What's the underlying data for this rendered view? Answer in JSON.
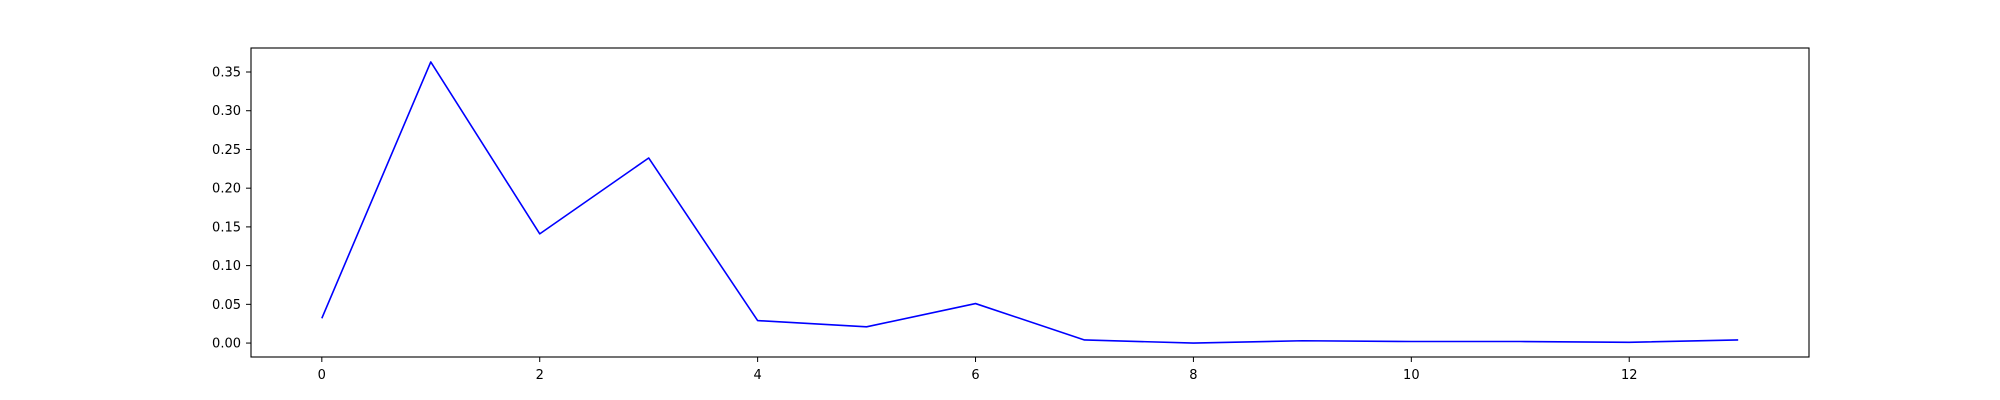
{
  "chart_data": {
    "type": "line",
    "title": "",
    "xlabel": "",
    "ylabel": "",
    "x": [
      0,
      1,
      2,
      3,
      4,
      5,
      6,
      7,
      8,
      9,
      10,
      11,
      12,
      13
    ],
    "series": [
      {
        "color": "#0000ff",
        "values": [
          0.032,
          0.363,
          0.141,
          0.239,
          0.029,
          0.021,
          0.051,
          0.004,
          0.0,
          0.003,
          0.002,
          0.002,
          0.001,
          0.004
        ]
      }
    ],
    "xlim": [
      -0.65,
      13.65
    ],
    "ylim": [
      -0.018,
      0.381
    ],
    "xticks": [
      0,
      2,
      4,
      6,
      8,
      10,
      12
    ],
    "yticks": [
      0.0,
      0.05,
      0.1,
      0.15,
      0.2,
      0.25,
      0.3,
      0.35
    ],
    "xtick_labels": [
      "0",
      "2",
      "4",
      "6",
      "8",
      "10",
      "12"
    ],
    "ytick_labels": [
      "0.00",
      "0.05",
      "0.10",
      "0.15",
      "0.20",
      "0.25",
      "0.30",
      "0.35"
    ],
    "grid": false,
    "legend": "none"
  }
}
